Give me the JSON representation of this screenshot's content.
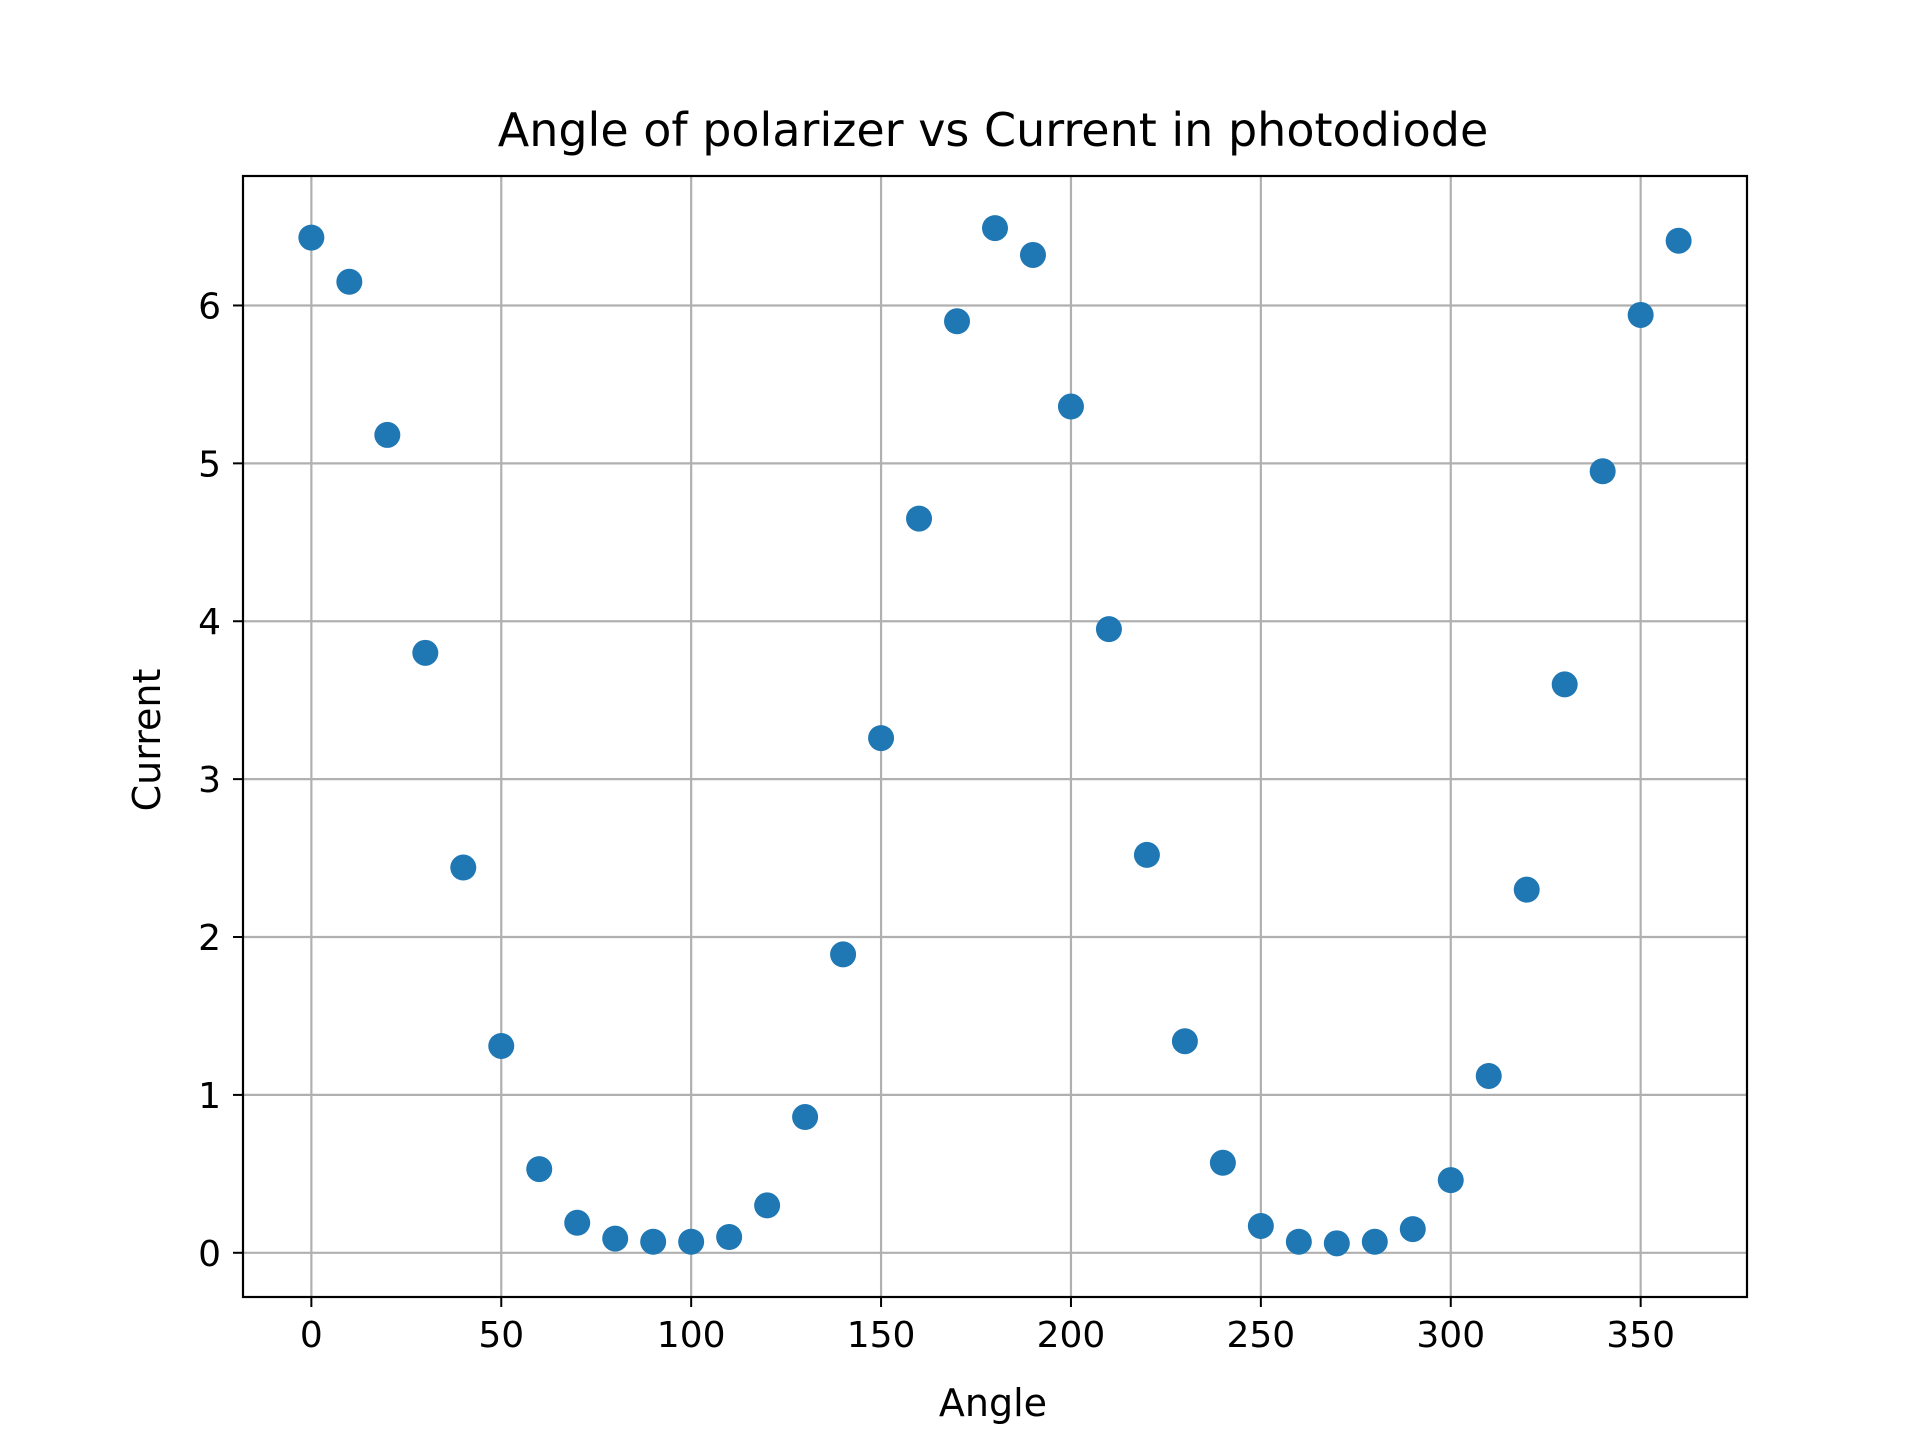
{
  "chart_data": {
    "type": "scatter",
    "title": "Angle of polarizer vs Current in photodiode",
    "xlabel": "Angle",
    "ylabel": "Current",
    "xlim": [
      -18,
      378
    ],
    "ylim": [
      -0.28,
      6.82
    ],
    "xticks": [
      0,
      50,
      100,
      150,
      200,
      250,
      300,
      350
    ],
    "yticks": [
      0,
      1,
      2,
      3,
      4,
      5,
      6
    ],
    "xtick_labels": [
      "0",
      "50",
      "100",
      "150",
      "200",
      "250",
      "300",
      "350"
    ],
    "ytick_labels": [
      "0",
      "1",
      "2",
      "3",
      "4",
      "5",
      "6"
    ],
    "grid": true,
    "marker_color": "#1f77b4",
    "x": [
      0,
      10,
      20,
      30,
      40,
      50,
      60,
      70,
      80,
      90,
      100,
      110,
      120,
      130,
      140,
      150,
      160,
      170,
      180,
      190,
      200,
      210,
      220,
      230,
      240,
      250,
      260,
      270,
      280,
      290,
      300,
      310,
      320,
      330,
      340,
      350,
      360
    ],
    "y": [
      6.43,
      6.15,
      5.18,
      3.8,
      2.44,
      1.31,
      0.53,
      0.19,
      0.09,
      0.07,
      0.07,
      0.1,
      0.3,
      0.86,
      1.89,
      3.26,
      4.65,
      5.9,
      6.49,
      6.32,
      5.36,
      3.95,
      2.52,
      1.34,
      0.57,
      0.17,
      0.07,
      0.06,
      0.07,
      0.15,
      0.46,
      1.12,
      2.3,
      3.6,
      4.95,
      5.94,
      6.41
    ]
  }
}
